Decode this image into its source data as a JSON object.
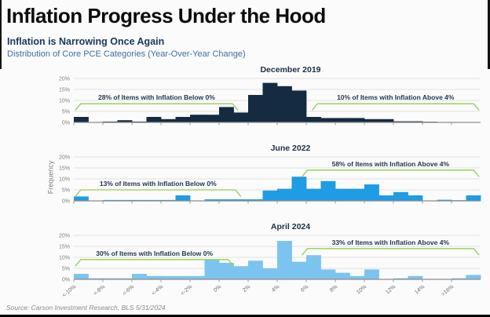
{
  "header": {
    "title": "Inflation Progress Under the Hood",
    "subtitle": "Inflation is Narrowing Once Again",
    "description": "Distribution of Core PCE Categories (Year-Over-Year Change)"
  },
  "footer": {
    "source": "Source: Carson Investment Research, BLS 5/31/2024"
  },
  "colors": {
    "navy_bars": "#142b42",
    "blue_bars": "#1e9ce4",
    "light_blue_bars": "#7cc4f0",
    "bracket_green": "#92d050",
    "annotation_text": "#1f3550",
    "axis_text": "#7f7f7f",
    "gridline": "#e2e2e2",
    "baseline": "#8c8c8c"
  },
  "chart_data": {
    "type": "bar",
    "subtype": "histogram-small-multiples",
    "ylabel": "Frequency",
    "xlabel": "",
    "ylim": [
      0,
      20
    ],
    "y_tick_labels": [
      "0%",
      "5%",
      "10%",
      "15%",
      "20%"
    ],
    "x_tick_labels": [
      "<-10%",
      "<-8%",
      "<-6%",
      "<-4%",
      "<-2%",
      "0%",
      "2%",
      "4%",
      "6%",
      "8%",
      "10%",
      "12%",
      "14%",
      ">16%"
    ],
    "bins_per_tick_interval": 2,
    "n_bins": 28,
    "grid": "horizontal",
    "panels": [
      {
        "title": "December 2019",
        "color_key": "navy_bars",
        "values": [
          2.5,
          0,
          0.4,
          1,
          0.4,
          2.5,
          1.5,
          2.5,
          3.5,
          3.5,
          7,
          4.5,
          12.5,
          18,
          16.5,
          14.5,
          2.5,
          2,
          2,
          2,
          1.5,
          1.5,
          0.5,
          0.5,
          0.3,
          0,
          0,
          0
        ],
        "annotations": [
          {
            "label": "28% of Items with Inflation Below 0%",
            "from_bin": 0.1,
            "to_bin": 11.3,
            "line_y": 8.5
          },
          {
            "label": "10% of Items with Inflation Above 4%",
            "from_bin": 16.4,
            "to_bin": 27.9,
            "line_y": 8.5
          }
        ]
      },
      {
        "title": "June 2022",
        "color_key": "blue_bars",
        "values": [
          2,
          0,
          0.4,
          0.4,
          0.4,
          0.4,
          0.4,
          2.5,
          0,
          0.7,
          0.7,
          0.7,
          0.7,
          4.7,
          5.5,
          11,
          5.5,
          9,
          5.5,
          5.5,
          7.5,
          2.5,
          4,
          2.5,
          0,
          0.5,
          0.3,
          2.5
        ],
        "annotations": [
          {
            "label": "13% of Items with Inflation Below 0%",
            "from_bin": 0.1,
            "to_bin": 11.5,
            "line_y": 5
          },
          {
            "label": "58% of Items with Inflation Above 4%",
            "from_bin": 15.7,
            "to_bin": 27.9,
            "line_y": 14
          }
        ]
      },
      {
        "title": "April 2024",
        "color_key": "light_blue_bars",
        "values": [
          2.5,
          0.5,
          0.5,
          0.5,
          2.5,
          1.5,
          1.5,
          1.5,
          1.5,
          9,
          7.5,
          6,
          8.5,
          5,
          17.5,
          8,
          11,
          4.5,
          3,
          1.5,
          4.5,
          0,
          0.5,
          1.5,
          0,
          0,
          0.5,
          2
        ],
        "annotations": [
          {
            "label": "30% of Items with Inflation Below 0%",
            "from_bin": 0.1,
            "to_bin": 11.0,
            "line_y": 9
          },
          {
            "label": "33% of Items with Inflation Above 4%",
            "from_bin": 15.7,
            "to_bin": 27.9,
            "line_y": 14
          }
        ]
      }
    ]
  }
}
